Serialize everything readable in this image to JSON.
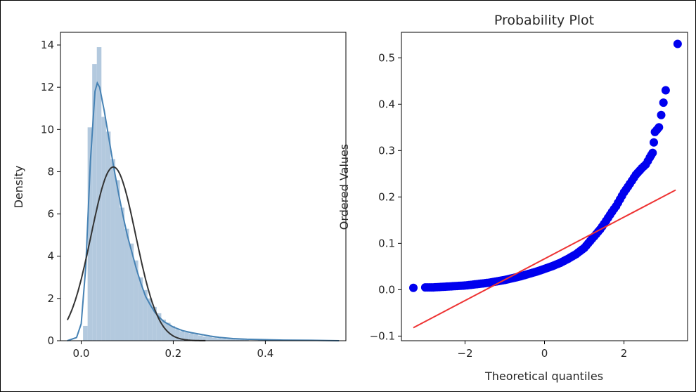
{
  "chart_data": [
    {
      "type": "histogram",
      "title": "",
      "xlabel": "",
      "ylabel": "Density",
      "xlim": [
        -0.045,
        0.575
      ],
      "ylim": [
        0,
        14.6
      ],
      "xticks": [
        "0.0",
        "0.2",
        "0.4"
      ],
      "xtick_values": [
        0.0,
        0.2,
        0.4
      ],
      "yticks": [
        "0",
        "2",
        "4",
        "6",
        "8",
        "10",
        "12",
        "14"
      ],
      "ytick_values": [
        0,
        2,
        4,
        6,
        8,
        10,
        12,
        14
      ],
      "grid": false,
      "bar_color": "#a6c0d8",
      "kde_color": "#4682b4",
      "normal_fit_color": "#333333",
      "bins": [
        {
          "x0": 0.004,
          "x1": 0.014,
          "density": 0.7
        },
        {
          "x0": 0.014,
          "x1": 0.024,
          "density": 10.1
        },
        {
          "x0": 0.024,
          "x1": 0.034,
          "density": 13.1
        },
        {
          "x0": 0.034,
          "x1": 0.044,
          "density": 13.9
        },
        {
          "x0": 0.044,
          "x1": 0.054,
          "density": 10.6
        },
        {
          "x0": 0.054,
          "x1": 0.064,
          "density": 9.9
        },
        {
          "x0": 0.064,
          "x1": 0.074,
          "density": 8.6
        },
        {
          "x0": 0.074,
          "x1": 0.084,
          "density": 7.6
        },
        {
          "x0": 0.084,
          "x1": 0.094,
          "density": 6.3
        },
        {
          "x0": 0.094,
          "x1": 0.104,
          "density": 5.3
        },
        {
          "x0": 0.104,
          "x1": 0.114,
          "density": 4.6
        },
        {
          "x0": 0.114,
          "x1": 0.124,
          "density": 3.8
        },
        {
          "x0": 0.124,
          "x1": 0.134,
          "density": 3.0
        },
        {
          "x0": 0.134,
          "x1": 0.144,
          "density": 2.4
        },
        {
          "x0": 0.144,
          "x1": 0.154,
          "density": 2.0
        },
        {
          "x0": 0.154,
          "x1": 0.164,
          "density": 1.6
        },
        {
          "x0": 0.164,
          "x1": 0.174,
          "density": 1.3
        },
        {
          "x0": 0.174,
          "x1": 0.184,
          "density": 1.0
        },
        {
          "x0": 0.184,
          "x1": 0.194,
          "density": 0.85
        },
        {
          "x0": 0.194,
          "x1": 0.204,
          "density": 0.7
        },
        {
          "x0": 0.204,
          "x1": 0.214,
          "density": 0.55
        },
        {
          "x0": 0.214,
          "x1": 0.224,
          "density": 0.45
        },
        {
          "x0": 0.224,
          "x1": 0.234,
          "density": 0.4
        },
        {
          "x0": 0.234,
          "x1": 0.244,
          "density": 0.35
        },
        {
          "x0": 0.244,
          "x1": 0.254,
          "density": 0.3
        },
        {
          "x0": 0.254,
          "x1": 0.264,
          "density": 0.25
        },
        {
          "x0": 0.264,
          "x1": 0.274,
          "density": 0.2
        },
        {
          "x0": 0.274,
          "x1": 0.284,
          "density": 0.18
        },
        {
          "x0": 0.284,
          "x1": 0.294,
          "density": 0.15
        },
        {
          "x0": 0.294,
          "x1": 0.304,
          "density": 0.12
        },
        {
          "x0": 0.304,
          "x1": 0.314,
          "density": 0.1
        },
        {
          "x0": 0.314,
          "x1": 0.324,
          "density": 0.08
        },
        {
          "x0": 0.324,
          "x1": 0.334,
          "density": 0.07
        },
        {
          "x0": 0.334,
          "x1": 0.344,
          "density": 0.06
        },
        {
          "x0": 0.344,
          "x1": 0.354,
          "density": 0.05
        },
        {
          "x0": 0.354,
          "x1": 0.364,
          "density": 0.04
        },
        {
          "x0": 0.384,
          "x1": 0.394,
          "density": 0.03
        },
        {
          "x0": 0.424,
          "x1": 0.434,
          "density": 0.03
        },
        {
          "x0": 0.524,
          "x1": 0.534,
          "density": 0.02
        }
      ],
      "kde_curve": [
        {
          "x": -0.03,
          "y": 0.0
        },
        {
          "x": -0.01,
          "y": 0.15
        },
        {
          "x": 0.0,
          "y": 0.8
        },
        {
          "x": 0.01,
          "y": 3.5
        },
        {
          "x": 0.02,
          "y": 8.5
        },
        {
          "x": 0.03,
          "y": 11.8
        },
        {
          "x": 0.035,
          "y": 12.2
        },
        {
          "x": 0.04,
          "y": 12.0
        },
        {
          "x": 0.05,
          "y": 10.9
        },
        {
          "x": 0.06,
          "y": 9.6
        },
        {
          "x": 0.07,
          "y": 8.3
        },
        {
          "x": 0.08,
          "y": 7.1
        },
        {
          "x": 0.09,
          "y": 6.0
        },
        {
          "x": 0.1,
          "y": 5.0
        },
        {
          "x": 0.11,
          "y": 4.2
        },
        {
          "x": 0.12,
          "y": 3.4
        },
        {
          "x": 0.13,
          "y": 2.7
        },
        {
          "x": 0.14,
          "y": 2.1
        },
        {
          "x": 0.15,
          "y": 1.7
        },
        {
          "x": 0.16,
          "y": 1.35
        },
        {
          "x": 0.17,
          "y": 1.1
        },
        {
          "x": 0.18,
          "y": 0.9
        },
        {
          "x": 0.2,
          "y": 0.65
        },
        {
          "x": 0.22,
          "y": 0.48
        },
        {
          "x": 0.24,
          "y": 0.38
        },
        {
          "x": 0.26,
          "y": 0.3
        },
        {
          "x": 0.28,
          "y": 0.22
        },
        {
          "x": 0.3,
          "y": 0.16
        },
        {
          "x": 0.33,
          "y": 0.1
        },
        {
          "x": 0.36,
          "y": 0.07
        },
        {
          "x": 0.4,
          "y": 0.05
        },
        {
          "x": 0.44,
          "y": 0.03
        },
        {
          "x": 0.5,
          "y": 0.02
        },
        {
          "x": 0.56,
          "y": 0.0
        }
      ],
      "normal_fit": {
        "mean": 0.07,
        "std": 0.0485
      }
    },
    {
      "type": "scatter",
      "title": "Probability Plot",
      "xlabel": "Theoretical quantiles",
      "ylabel": "Ordered Values",
      "xlim": [
        -3.6,
        3.6
      ],
      "ylim": [
        -0.11,
        0.555
      ],
      "xticks": [
        "−2",
        "0",
        "2"
      ],
      "xtick_values": [
        -2,
        0,
        2
      ],
      "yticks": [
        "−0.1",
        "0.0",
        "0.1",
        "0.2",
        "0.3",
        "0.4",
        "0.5"
      ],
      "ytick_values": [
        -0.1,
        0.0,
        0.1,
        0.2,
        0.3,
        0.4,
        0.5
      ],
      "grid": false,
      "point_color": "#0000ee",
      "line_color": "#ee3333",
      "fit_line": {
        "x0": -3.3,
        "y0": -0.082,
        "x1": 3.3,
        "y1": 0.215
      },
      "points": [
        {
          "x": -3.3,
          "y": 0.004
        },
        {
          "x": -3.0,
          "y": 0.005
        },
        {
          "x": -2.8,
          "y": 0.005
        },
        {
          "x": -2.6,
          "y": 0.006
        },
        {
          "x": -2.4,
          "y": 0.007
        },
        {
          "x": -2.2,
          "y": 0.008
        },
        {
          "x": -2.0,
          "y": 0.009
        },
        {
          "x": -1.8,
          "y": 0.011
        },
        {
          "x": -1.6,
          "y": 0.013
        },
        {
          "x": -1.4,
          "y": 0.015
        },
        {
          "x": -1.2,
          "y": 0.018
        },
        {
          "x": -1.0,
          "y": 0.021
        },
        {
          "x": -0.8,
          "y": 0.025
        },
        {
          "x": -0.6,
          "y": 0.029
        },
        {
          "x": -0.4,
          "y": 0.034
        },
        {
          "x": -0.2,
          "y": 0.039
        },
        {
          "x": 0.0,
          "y": 0.045
        },
        {
          "x": 0.2,
          "y": 0.051
        },
        {
          "x": 0.4,
          "y": 0.058
        },
        {
          "x": 0.6,
          "y": 0.067
        },
        {
          "x": 0.8,
          "y": 0.077
        },
        {
          "x": 1.0,
          "y": 0.09
        },
        {
          "x": 1.1,
          "y": 0.1
        },
        {
          "x": 1.2,
          "y": 0.11
        },
        {
          "x": 1.3,
          "y": 0.12
        },
        {
          "x": 1.4,
          "y": 0.13
        },
        {
          "x": 1.5,
          "y": 0.142
        },
        {
          "x": 1.6,
          "y": 0.155
        },
        {
          "x": 1.7,
          "y": 0.168
        },
        {
          "x": 1.8,
          "y": 0.18
        },
        {
          "x": 1.9,
          "y": 0.195
        },
        {
          "x": 2.0,
          "y": 0.21
        },
        {
          "x": 2.1,
          "y": 0.222
        },
        {
          "x": 2.2,
          "y": 0.235
        },
        {
          "x": 2.3,
          "y": 0.248
        },
        {
          "x": 2.45,
          "y": 0.262
        },
        {
          "x": 2.55,
          "y": 0.27
        },
        {
          "x": 2.65,
          "y": 0.285
        },
        {
          "x": 2.72,
          "y": 0.295
        },
        {
          "x": 2.78,
          "y": 0.34
        },
        {
          "x": 2.88,
          "y": 0.35
        },
        {
          "x": 3.05,
          "y": 0.43
        },
        {
          "x": 3.35,
          "y": 0.53
        }
      ]
    }
  ]
}
